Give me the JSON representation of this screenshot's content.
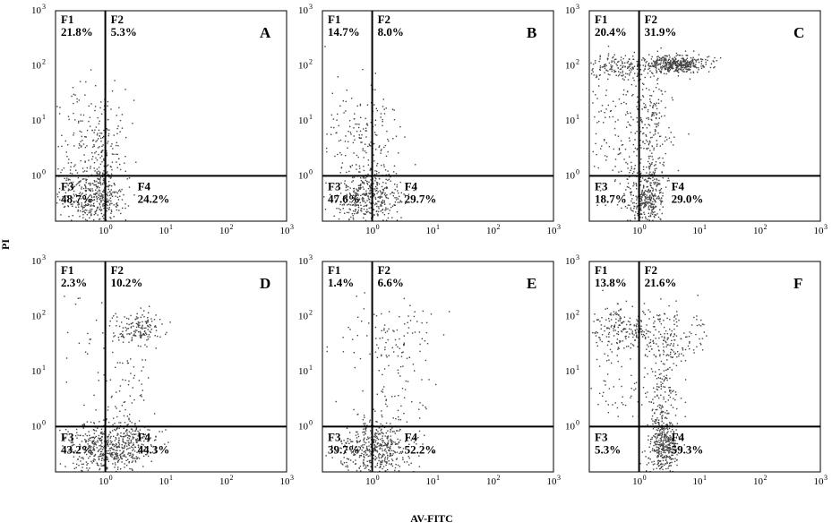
{
  "figure": {
    "y_axis_label": "PI",
    "x_axis_label": "AV-FITC",
    "colors": {
      "frame": "#000000",
      "gate": "#000000",
      "dots": "#444444"
    }
  },
  "chart_data": [
    {
      "type": "scatter",
      "panel": "A",
      "xlabel": "AV-FITC",
      "ylabel": "PI",
      "scale": "log",
      "xlim": [
        0.15,
        1000
      ],
      "ylim": [
        0.15,
        1000
      ],
      "x_ticks": [
        "10",
        "10",
        "10",
        "10"
      ],
      "x_tick_exponents": [
        "0",
        "1",
        "2",
        "3"
      ],
      "y_ticks": [
        "10",
        "10",
        "10",
        "10"
      ],
      "y_tick_exponents": [
        "0",
        "1",
        "2",
        "3"
      ],
      "gates": {
        "x": 1,
        "y": 1
      },
      "quadrants": [
        {
          "name": "F1",
          "value": "21.8%"
        },
        {
          "name": "F2",
          "value": "5.3%"
        },
        {
          "name": "F3",
          "value": "48.7%"
        },
        {
          "name": "F4",
          "value": "24.2%"
        }
      ],
      "clusters": [
        {
          "x": 0.55,
          "y": 0.45,
          "sx": 0.28,
          "sy": 0.25,
          "n": 320
        },
        {
          "x": 0.5,
          "y": 6.0,
          "sx": 0.3,
          "sy": 0.45,
          "n": 160
        },
        {
          "x": 1.0,
          "y": 0.5,
          "sx": 0.13,
          "sy": 0.3,
          "n": 90
        },
        {
          "x": 0.95,
          "y": 2.5,
          "sx": 0.12,
          "sy": 0.35,
          "n": 60
        }
      ]
    },
    {
      "type": "scatter",
      "panel": "B",
      "xlabel": "AV-FITC",
      "ylabel": "PI",
      "scale": "log",
      "xlim": [
        0.15,
        1000
      ],
      "ylim": [
        0.15,
        1000
      ],
      "x_ticks": [
        "10",
        "10",
        "10",
        "10"
      ],
      "x_tick_exponents": [
        "0",
        "1",
        "2",
        "3"
      ],
      "y_ticks": [
        "10",
        "10",
        "10",
        "10"
      ],
      "y_tick_exponents": [
        "0",
        "1",
        "2",
        "3"
      ],
      "gates": {
        "x": 1,
        "y": 1
      },
      "quadrants": [
        {
          "name": "F1",
          "value": "14.7%"
        },
        {
          "name": "F2",
          "value": "8.0%"
        },
        {
          "name": "F3",
          "value": "47.6%"
        },
        {
          "name": "F4",
          "value": "29.7%"
        }
      ],
      "clusters": [
        {
          "x": 0.75,
          "y": 0.4,
          "sx": 0.25,
          "sy": 0.25,
          "n": 340
        },
        {
          "x": 0.5,
          "y": 5.0,
          "sx": 0.3,
          "sy": 0.5,
          "n": 110
        },
        {
          "x": 1.5,
          "y": 0.5,
          "sx": 0.2,
          "sy": 0.3,
          "n": 110
        },
        {
          "x": 1.2,
          "y": 4.0,
          "sx": 0.15,
          "sy": 0.45,
          "n": 70
        }
      ]
    },
    {
      "type": "scatter",
      "panel": "C",
      "xlabel": "AV-FITC",
      "ylabel": "PI",
      "scale": "log",
      "xlim": [
        0.15,
        1000
      ],
      "ylim": [
        0.15,
        1000
      ],
      "x_ticks": [
        "10",
        "10",
        "10",
        "10"
      ],
      "x_tick_exponents": [
        "0",
        "1",
        "2",
        "3"
      ],
      "y_ticks": [
        "10",
        "10",
        "10",
        "10"
      ],
      "y_tick_exponents": [
        "0",
        "1",
        "2",
        "3"
      ],
      "gates": {
        "x": 1,
        "y": 1
      },
      "quadrants": [
        {
          "name": "F1",
          "value": "20.4%"
        },
        {
          "name": "F2",
          "value": "31.9%"
        },
        {
          "name": "F3",
          "value": "18.7%"
        },
        {
          "name": "F4",
          "value": "29.0%"
        }
      ],
      "clusters": [
        {
          "x": 4.0,
          "y": 110,
          "sx": 0.25,
          "sy": 0.08,
          "n": 420
        },
        {
          "x": 0.5,
          "y": 100,
          "sx": 0.3,
          "sy": 0.12,
          "n": 180
        },
        {
          "x": 0.4,
          "y": 8.0,
          "sx": 0.35,
          "sy": 0.6,
          "n": 150
        },
        {
          "x": 1.5,
          "y": 6.0,
          "sx": 0.18,
          "sy": 0.6,
          "n": 220
        },
        {
          "x": 1.3,
          "y": 0.4,
          "sx": 0.15,
          "sy": 0.25,
          "n": 320
        }
      ]
    },
    {
      "type": "scatter",
      "panel": "D",
      "xlabel": "AV-FITC",
      "ylabel": "PI",
      "scale": "log",
      "xlim": [
        0.15,
        1000
      ],
      "ylim": [
        0.15,
        1000
      ],
      "x_ticks": [
        "10",
        "10",
        "10",
        "10"
      ],
      "x_tick_exponents": [
        "0",
        "1",
        "2",
        "3"
      ],
      "y_ticks": [
        "10",
        "10",
        "10",
        "10"
      ],
      "y_tick_exponents": [
        "0",
        "1",
        "2",
        "3"
      ],
      "gates": {
        "x": 1,
        "y": 1
      },
      "quadrants": [
        {
          "name": "F1",
          "value": "2.3%"
        },
        {
          "name": "F2",
          "value": "10.2%"
        },
        {
          "name": "F3",
          "value": "43.2%"
        },
        {
          "name": "F4",
          "value": "44.3%"
        }
      ],
      "clusters": [
        {
          "x": 1.3,
          "y": 0.45,
          "sx": 0.35,
          "sy": 0.25,
          "n": 600
        },
        {
          "x": 3.5,
          "y": 60,
          "sx": 0.22,
          "sy": 0.15,
          "n": 150
        },
        {
          "x": 2.5,
          "y": 5.0,
          "sx": 0.25,
          "sy": 0.5,
          "n": 60
        },
        {
          "x": 0.5,
          "y": 30,
          "sx": 0.3,
          "sy": 0.5,
          "n": 25
        }
      ]
    },
    {
      "type": "scatter",
      "panel": "E",
      "xlabel": "AV-FITC",
      "ylabel": "PI",
      "scale": "log",
      "xlim": [
        0.15,
        1000
      ],
      "ylim": [
        0.15,
        1000
      ],
      "x_ticks": [
        "10",
        "10",
        "10",
        "10"
      ],
      "x_tick_exponents": [
        "0",
        "1",
        "2",
        "3"
      ],
      "y_ticks": [
        "10",
        "10",
        "10",
        "10"
      ],
      "y_tick_exponents": [
        "0",
        "1",
        "2",
        "3"
      ],
      "gates": {
        "x": 1,
        "y": 1
      },
      "quadrants": [
        {
          "name": "F1",
          "value": "1.4%"
        },
        {
          "name": "F2",
          "value": "6.6%"
        },
        {
          "name": "F3",
          "value": "39.7%"
        },
        {
          "name": "F4",
          "value": "52.2%"
        }
      ],
      "clusters": [
        {
          "x": 1.1,
          "y": 0.4,
          "sx": 0.3,
          "sy": 0.25,
          "n": 480
        },
        {
          "x": 3.0,
          "y": 40,
          "sx": 0.3,
          "sy": 0.3,
          "n": 80
        },
        {
          "x": 2.5,
          "y": 4.0,
          "sx": 0.3,
          "sy": 0.5,
          "n": 60
        },
        {
          "x": 0.6,
          "y": 30,
          "sx": 0.3,
          "sy": 0.5,
          "n": 20
        }
      ]
    },
    {
      "type": "scatter",
      "panel": "F",
      "xlabel": "AV-FITC",
      "ylabel": "PI",
      "scale": "log",
      "xlim": [
        0.15,
        1000
      ],
      "ylim": [
        0.15,
        1000
      ],
      "x_ticks": [
        "10",
        "10",
        "10",
        "10"
      ],
      "x_tick_exponents": [
        "0",
        "1",
        "2",
        "3"
      ],
      "y_ticks": [
        "10",
        "10",
        "10",
        "10"
      ],
      "y_tick_exponents": [
        "0",
        "1",
        "2",
        "3"
      ],
      "gates": {
        "x": 1,
        "y": 1
      },
      "quadrants": [
        {
          "name": "F1",
          "value": "13.8%"
        },
        {
          "name": "F2",
          "value": "21.6%"
        },
        {
          "name": "F3",
          "value": "5.3%"
        },
        {
          "name": "F4",
          "value": "59.3%"
        }
      ],
      "clusters": [
        {
          "x": 2.5,
          "y": 0.45,
          "sx": 0.12,
          "sy": 0.25,
          "n": 380
        },
        {
          "x": 0.5,
          "y": 60,
          "sx": 0.3,
          "sy": 0.2,
          "n": 200
        },
        {
          "x": 3.0,
          "y": 40,
          "sx": 0.3,
          "sy": 0.25,
          "n": 160
        },
        {
          "x": 2.5,
          "y": 4.0,
          "sx": 0.12,
          "sy": 0.45,
          "n": 140
        },
        {
          "x": 0.5,
          "y": 6.0,
          "sx": 0.3,
          "sy": 0.5,
          "n": 60
        }
      ]
    }
  ]
}
